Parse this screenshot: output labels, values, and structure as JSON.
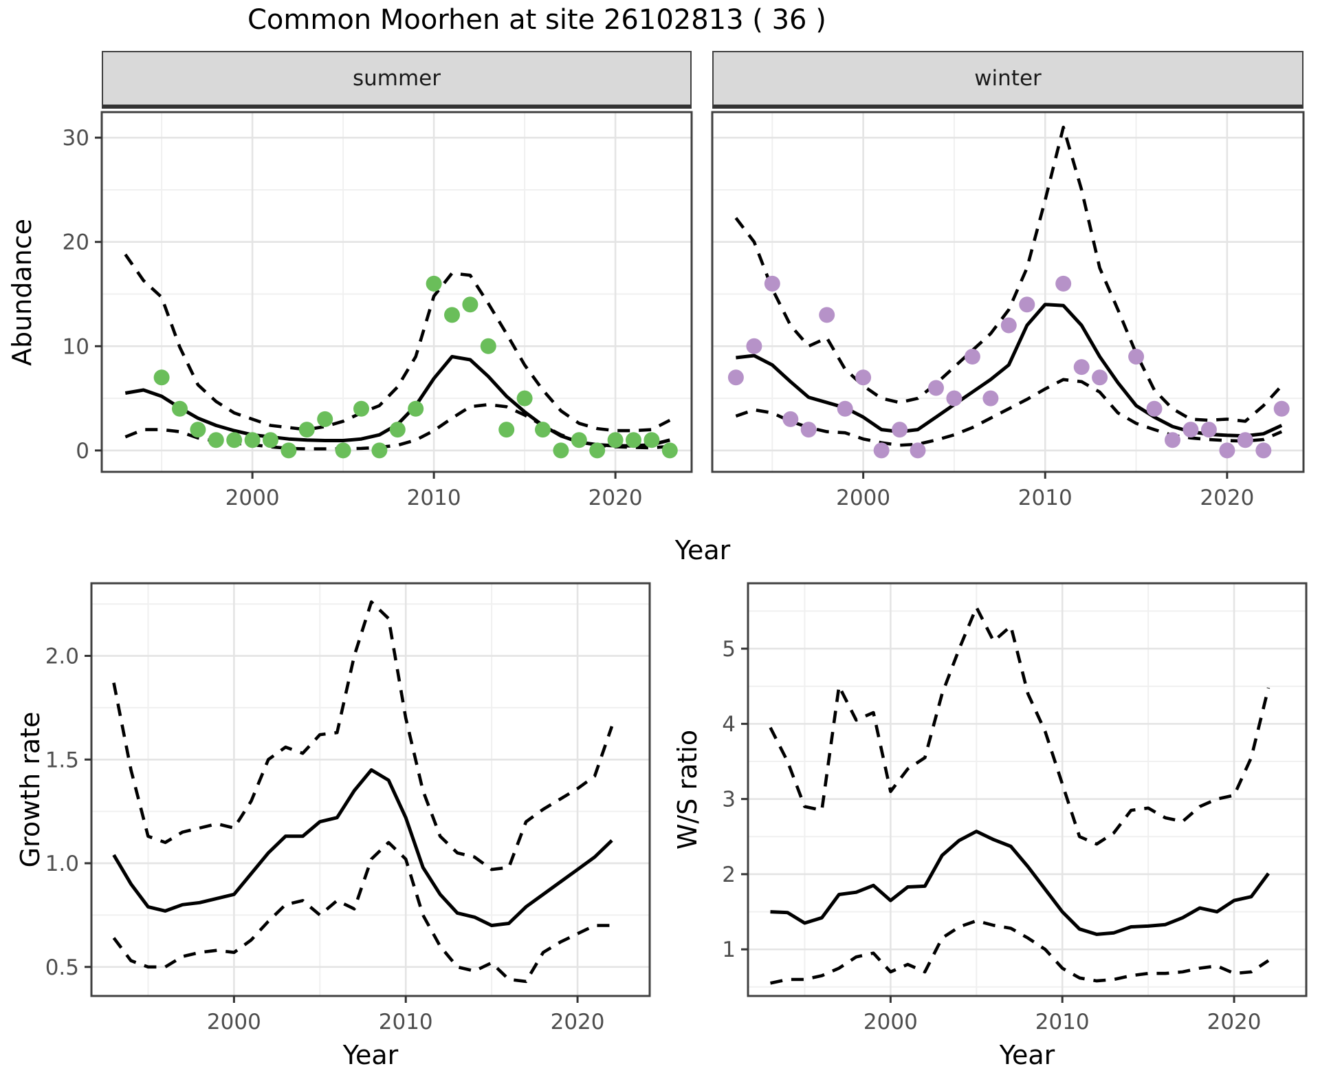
{
  "title": "Common Moorhen at site 26102813 ( 36 )",
  "facets": [
    "summer",
    "winter"
  ],
  "axes": {
    "top_y_title": "Abundance",
    "x_title": "Year",
    "growth_y_title": "Growth rate",
    "ws_y_title": "W/S ratio"
  },
  "colors": {
    "summer_point": "#6abe5a",
    "winter_point": "#b692c8",
    "line": "#000000",
    "grid_major": "#e4e4e4",
    "grid_minor": "#f0f0f0",
    "strip_bg": "#d9d9d9",
    "panel_border": "#404040",
    "tick_mark": "#333333",
    "tick_text": "#4d4d4d"
  },
  "chart_data": [
    {
      "id": "summer",
      "type": "line",
      "facet": "summer",
      "xlabel": "Year",
      "ylabel": "Abundance",
      "xlim": [
        1991.7,
        2024.2
      ],
      "ylim": [
        -2.05,
        32.45
      ],
      "xticks": [
        {
          "v": 2000,
          "label": "2000"
        },
        {
          "v": 2010,
          "label": "2010"
        },
        {
          "v": 2020,
          "label": "2020"
        }
      ],
      "xminor": [
        1995,
        2005,
        2015
      ],
      "yticks": [
        {
          "v": 0,
          "label": "0"
        },
        {
          "v": 10,
          "label": "10"
        },
        {
          "v": 20,
          "label": "20"
        },
        {
          "v": 30,
          "label": "30"
        }
      ],
      "yminor": [
        5,
        15,
        25
      ],
      "x_years": [
        1993,
        1994,
        1995,
        1996,
        1997,
        1998,
        1999,
        2000,
        2001,
        2002,
        2003,
        2004,
        2005,
        2006,
        2007,
        2008,
        2009,
        2010,
        2011,
        2012,
        2013,
        2014,
        2015,
        2016,
        2017,
        2018,
        2019,
        2020,
        2021,
        2022,
        2023
      ],
      "series": [
        {
          "name": "fit",
          "style": "solid",
          "values": [
            5.5,
            5.8,
            5.2,
            4.1,
            3.1,
            2.4,
            1.9,
            1.5,
            1.3,
            1.1,
            1.0,
            0.95,
            0.95,
            1.1,
            1.5,
            2.5,
            4.3,
            6.9,
            9.0,
            8.7,
            7.1,
            5.2,
            3.7,
            2.4,
            1.4,
            0.8,
            0.55,
            0.45,
            0.45,
            0.55,
            1.0
          ]
        },
        {
          "name": "upper_ci",
          "style": "dashed",
          "values": [
            18.8,
            16.3,
            14.7,
            9.9,
            6.3,
            4.7,
            3.6,
            3.0,
            2.4,
            2.2,
            2.0,
            2.3,
            2.8,
            3.6,
            4.3,
            6.1,
            9.0,
            14.8,
            17.0,
            16.8,
            14.1,
            11.2,
            8.2,
            5.8,
            3.8,
            2.6,
            2.1,
            1.9,
            1.9,
            2.0,
            2.9
          ]
        },
        {
          "name": "lower_ci",
          "style": "dashed",
          "values": [
            1.3,
            2.0,
            2.0,
            1.8,
            1.2,
            0.9,
            0.7,
            0.55,
            0.35,
            0.2,
            0.15,
            0.15,
            0.15,
            0.2,
            0.3,
            0.5,
            1.0,
            1.9,
            3.1,
            4.2,
            4.4,
            4.2,
            3.4,
            2.4,
            1.5,
            0.9,
            0.5,
            0.35,
            0.3,
            0.25,
            0.4
          ]
        }
      ],
      "points": {
        "name": "observed-counts-summer",
        "color_key": "summer_point",
        "years": [
          1995,
          1996,
          1997,
          1998,
          1999,
          2000,
          2001,
          2002,
          2003,
          2004,
          2005,
          2006,
          2007,
          2008,
          2009,
          2010,
          2011,
          2012,
          2013,
          2014,
          2015,
          2016,
          2017,
          2018,
          2019,
          2020,
          2021,
          2022,
          2023
        ],
        "values": [
          7,
          4,
          2,
          1,
          1,
          1,
          1,
          0,
          2,
          3,
          0,
          4,
          0,
          2,
          4,
          16,
          13,
          14,
          10,
          2,
          5,
          2,
          0,
          1,
          0,
          1,
          1,
          1,
          0
        ]
      }
    },
    {
      "id": "winter",
      "type": "line",
      "facet": "winter",
      "xlabel": "Year",
      "ylabel": "Abundance",
      "xlim": [
        1991.7,
        2024.2
      ],
      "ylim": [
        -2.05,
        32.45
      ],
      "xticks": [
        {
          "v": 2000,
          "label": "2000"
        },
        {
          "v": 2010,
          "label": "2010"
        },
        {
          "v": 2020,
          "label": "2020"
        }
      ],
      "xminor": [
        1995,
        2005,
        2015
      ],
      "yticks": [
        {
          "v": 0,
          "label": "0"
        },
        {
          "v": 10,
          "label": "10"
        },
        {
          "v": 20,
          "label": "20"
        },
        {
          "v": 30,
          "label": "30"
        }
      ],
      "yminor": [
        5,
        15,
        25
      ],
      "x_years": [
        1993,
        1994,
        1995,
        1996,
        1997,
        1998,
        1999,
        2000,
        2001,
        2002,
        2003,
        2004,
        2005,
        2006,
        2007,
        2008,
        2009,
        2010,
        2011,
        2012,
        2013,
        2014,
        2015,
        2016,
        2017,
        2018,
        2019,
        2020,
        2021,
        2022,
        2023
      ],
      "series": [
        {
          "name": "fit",
          "style": "solid",
          "values": [
            8.9,
            9.1,
            8.2,
            6.6,
            5.1,
            4.6,
            4.1,
            3.2,
            2.0,
            1.8,
            2.0,
            3.2,
            4.4,
            5.6,
            6.8,
            8.2,
            12.0,
            14.0,
            13.9,
            12.0,
            9.0,
            6.5,
            4.3,
            3.2,
            2.3,
            1.8,
            1.55,
            1.45,
            1.4,
            1.6,
            2.4
          ]
        },
        {
          "name": "upper_ci",
          "style": "dashed",
          "values": [
            22.3,
            20.0,
            15.5,
            12.0,
            10.0,
            10.8,
            7.8,
            6.2,
            5.0,
            4.6,
            5.0,
            6.4,
            8.0,
            9.6,
            11.2,
            13.5,
            17.5,
            24.0,
            31.0,
            25.0,
            17.5,
            13.5,
            9.3,
            5.8,
            4.0,
            3.0,
            2.9,
            3.0,
            2.8,
            4.3,
            6.2
          ]
        },
        {
          "name": "lower_ci",
          "style": "dashed",
          "values": [
            3.3,
            3.9,
            3.6,
            2.8,
            2.2,
            1.8,
            1.7,
            1.1,
            0.75,
            0.5,
            0.6,
            1.0,
            1.5,
            2.2,
            3.1,
            4.0,
            4.9,
            5.9,
            6.8,
            6.6,
            5.6,
            3.6,
            2.6,
            2.0,
            1.45,
            1.2,
            1.05,
            0.95,
            0.9,
            1.05,
            1.8
          ]
        }
      ],
      "points": {
        "name": "observed-counts-winter",
        "color_key": "winter_point",
        "years": [
          1993,
          1994,
          1995,
          1996,
          1997,
          1998,
          1999,
          2000,
          2001,
          2002,
          2003,
          2004,
          2005,
          2006,
          2007,
          2008,
          2009,
          2011,
          2012,
          2013,
          2015,
          2016,
          2017,
          2018,
          2019,
          2020,
          2021,
          2022,
          2023
        ],
        "values": [
          7,
          10,
          16,
          3,
          2,
          13,
          4,
          7,
          0,
          2,
          0,
          6,
          5,
          9,
          5,
          12,
          14,
          16,
          8,
          7,
          9,
          4,
          1,
          2,
          2,
          0,
          1,
          0,
          4
        ]
      }
    },
    {
      "id": "growth",
      "type": "line",
      "xlabel": "Year",
      "ylabel": "Growth rate",
      "xlim": [
        1991.7,
        2024.2
      ],
      "ylim": [
        0.36,
        2.35
      ],
      "xticks": [
        {
          "v": 2000,
          "label": "2000"
        },
        {
          "v": 2010,
          "label": "2010"
        },
        {
          "v": 2020,
          "label": "2020"
        }
      ],
      "xminor": [
        1995,
        2005,
        2015
      ],
      "yticks": [
        {
          "v": 0.5,
          "label": "0.5"
        },
        {
          "v": 1.0,
          "label": "1.0"
        },
        {
          "v": 1.5,
          "label": "1.5"
        },
        {
          "v": 2.0,
          "label": "2.0"
        }
      ],
      "yminor": [
        0.75,
        1.25,
        1.75,
        2.25
      ],
      "x_years": [
        1993,
        1994,
        1995,
        1996,
        1997,
        1998,
        1999,
        2000,
        2001,
        2002,
        2003,
        2004,
        2005,
        2006,
        2007,
        2008,
        2009,
        2010,
        2011,
        2012,
        2013,
        2014,
        2015,
        2016,
        2017,
        2018,
        2019,
        2020,
        2021,
        2022
      ],
      "series": [
        {
          "name": "fit",
          "style": "solid",
          "values": [
            1.04,
            0.9,
            0.79,
            0.77,
            0.8,
            0.81,
            0.83,
            0.85,
            0.95,
            1.05,
            1.13,
            1.13,
            1.2,
            1.22,
            1.35,
            1.45,
            1.4,
            1.22,
            0.98,
            0.85,
            0.76,
            0.74,
            0.7,
            0.71,
            0.79,
            0.85,
            0.91,
            0.97,
            1.03,
            1.11
          ]
        },
        {
          "name": "upper_ci",
          "style": "dashed",
          "values": [
            1.87,
            1.45,
            1.13,
            1.1,
            1.15,
            1.17,
            1.19,
            1.17,
            1.3,
            1.5,
            1.56,
            1.53,
            1.62,
            1.63,
            2.0,
            2.26,
            2.18,
            1.7,
            1.35,
            1.13,
            1.05,
            1.03,
            0.97,
            0.98,
            1.2,
            1.26,
            1.31,
            1.36,
            1.42,
            1.66
          ]
        },
        {
          "name": "lower_ci",
          "style": "dashed",
          "values": [
            0.64,
            0.53,
            0.5,
            0.5,
            0.55,
            0.57,
            0.58,
            0.57,
            0.63,
            0.72,
            0.8,
            0.82,
            0.75,
            0.82,
            0.78,
            1.02,
            1.1,
            1.02,
            0.75,
            0.6,
            0.5,
            0.48,
            0.52,
            0.44,
            0.43,
            0.57,
            0.62,
            0.66,
            0.7,
            0.7
          ]
        }
      ]
    },
    {
      "id": "ws",
      "type": "line",
      "xlabel": "Year",
      "ylabel": "W/S ratio",
      "xlim": [
        1991.7,
        2024.2
      ],
      "ylim": [
        0.38,
        5.87
      ],
      "xticks": [
        {
          "v": 2000,
          "label": "2000"
        },
        {
          "v": 2010,
          "label": "2010"
        },
        {
          "v": 2020,
          "label": "2020"
        }
      ],
      "xminor": [
        1995,
        2005,
        2015
      ],
      "yticks": [
        {
          "v": 1,
          "label": "1"
        },
        {
          "v": 2,
          "label": "2"
        },
        {
          "v": 3,
          "label": "3"
        },
        {
          "v": 4,
          "label": "4"
        },
        {
          "v": 5,
          "label": "5"
        }
      ],
      "yminor": [
        0.5,
        1.5,
        2.5,
        3.5,
        4.5,
        5.5
      ],
      "x_years": [
        1993,
        1994,
        1995,
        1996,
        1997,
        1998,
        1999,
        2000,
        2001,
        2002,
        2003,
        2004,
        2005,
        2006,
        2007,
        2008,
        2009,
        2010,
        2011,
        2012,
        2013,
        2014,
        2015,
        2016,
        2017,
        2018,
        2019,
        2020,
        2021,
        2022
      ],
      "series": [
        {
          "name": "fit",
          "style": "solid",
          "values": [
            1.5,
            1.49,
            1.35,
            1.42,
            1.73,
            1.76,
            1.85,
            1.65,
            1.83,
            1.84,
            2.25,
            2.45,
            2.57,
            2.46,
            2.37,
            2.1,
            1.8,
            1.5,
            1.27,
            1.2,
            1.22,
            1.3,
            1.31,
            1.33,
            1.42,
            1.55,
            1.5,
            1.65,
            1.7,
            2.01
          ]
        },
        {
          "name": "upper_ci",
          "style": "dashed",
          "values": [
            3.95,
            3.5,
            2.9,
            2.85,
            4.5,
            4.05,
            4.15,
            3.1,
            3.4,
            3.55,
            4.4,
            5.0,
            5.55,
            5.1,
            5.3,
            4.4,
            3.9,
            3.2,
            2.5,
            2.4,
            2.55,
            2.85,
            2.88,
            2.75,
            2.7,
            2.9,
            3.0,
            3.05,
            3.55,
            4.48
          ]
        },
        {
          "name": "lower_ci",
          "style": "dashed",
          "values": [
            0.55,
            0.6,
            0.6,
            0.65,
            0.75,
            0.9,
            0.95,
            0.7,
            0.8,
            0.7,
            1.15,
            1.3,
            1.38,
            1.32,
            1.28,
            1.15,
            1.0,
            0.75,
            0.62,
            0.58,
            0.6,
            0.65,
            0.68,
            0.68,
            0.7,
            0.75,
            0.78,
            0.68,
            0.7,
            0.85
          ]
        }
      ]
    }
  ]
}
